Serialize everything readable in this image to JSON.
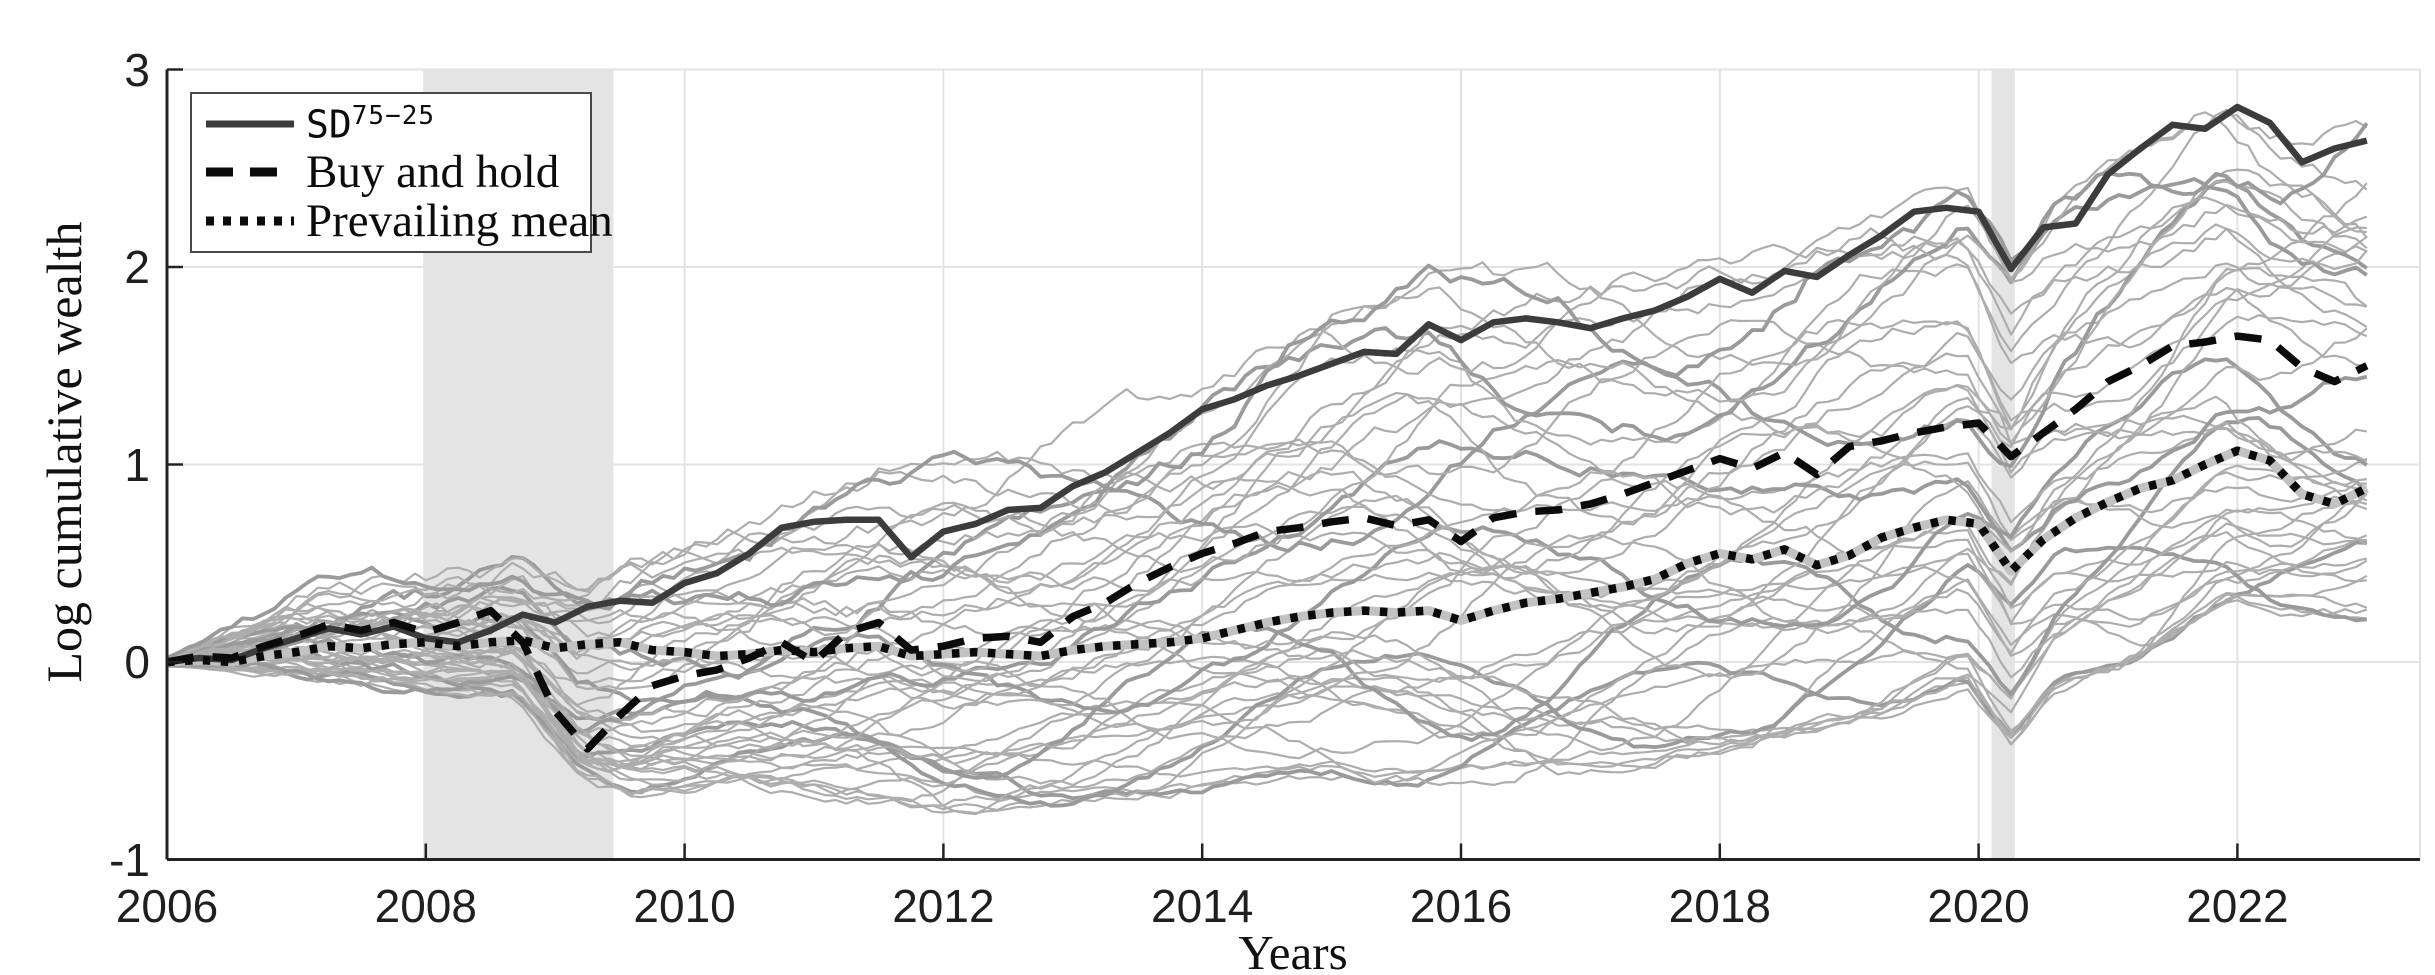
{
  "figure": {
    "background": "#ffffff"
  },
  "legend": {
    "items": [
      {
        "label_base": "SD",
        "label_superscript": "75−25",
        "style": "solid"
      },
      {
        "label": "Buy and hold",
        "style": "dashed"
      },
      {
        "label": "Prevailing mean",
        "style": "dotted"
      }
    ]
  },
  "chart_data": {
    "type": "line",
    "title": "",
    "xlabel": "Years",
    "ylabel": "Log cumulative wealth",
    "xlim": [
      2006,
      2023.4
    ],
    "ylim": [
      -1,
      3
    ],
    "grid": true,
    "legend_position": "top-left",
    "xticks": [
      2006,
      2008,
      2010,
      2012,
      2014,
      2016,
      2018,
      2020,
      2022
    ],
    "xtick_labels": [
      "2006",
      "2008",
      "2010",
      "2012",
      "2014",
      "2016",
      "2018",
      "2020",
      "2022"
    ],
    "yticks": [
      -1,
      0,
      1,
      2,
      3
    ],
    "ytick_labels": [
      "-1",
      "0",
      "1",
      "2",
      "3"
    ],
    "recession_bands": [
      {
        "start": 2007.98,
        "end": 2009.45
      },
      {
        "start": 2020.1,
        "end": 2020.28
      }
    ],
    "colors": {
      "band": "#e4e4e4",
      "grid": "#e3e3e3",
      "axis": "#222222",
      "halo": "#c2c2c2"
    },
    "x_start": 2006,
    "x_step": 0.25,
    "series": [
      {
        "name": "SD75-25",
        "style": "solid",
        "color": "#3c3c3c",
        "width": 6.5,
        "values": [
          0,
          0.02,
          0.01,
          0.07,
          0.12,
          0.17,
          0.14,
          0.18,
          0.12,
          0.1,
          0.16,
          0.24,
          0.2,
          0.28,
          0.31,
          0.3,
          0.4,
          0.45,
          0.55,
          0.68,
          0.71,
          0.72,
          0.72,
          0.53,
          0.66,
          0.7,
          0.77,
          0.78,
          0.89,
          0.96,
          1.06,
          1.16,
          1.28,
          1.33,
          1.4,
          1.45,
          1.51,
          1.57,
          1.56,
          1.71,
          1.63,
          1.72,
          1.74,
          1.72,
          1.69,
          1.74,
          1.78,
          1.85,
          1.94,
          1.87,
          1.98,
          1.95,
          2.06,
          2.16,
          2.28,
          2.3,
          2.28,
          1.99,
          2.2,
          2.22,
          2.47,
          2.6,
          2.72,
          2.7,
          2.81,
          2.73,
          2.53,
          2.6,
          2.64
        ]
      },
      {
        "name": "Buy and hold",
        "style": "dashed",
        "color": "#0b0b0b",
        "width": 7.5,
        "dash": "27 19",
        "values": [
          0,
          0.03,
          0.02,
          0.08,
          0.13,
          0.19,
          0.16,
          0.2,
          0.15,
          0.2,
          0.26,
          0.1,
          -0.25,
          -0.44,
          -0.27,
          -0.12,
          -0.07,
          -0.04,
          0.02,
          0.1,
          0.0,
          0.15,
          0.2,
          0.06,
          0.08,
          0.12,
          0.13,
          0.1,
          0.23,
          0.3,
          0.4,
          0.48,
          0.55,
          0.6,
          0.66,
          0.68,
          0.71,
          0.73,
          0.69,
          0.72,
          0.61,
          0.73,
          0.76,
          0.77,
          0.8,
          0.85,
          0.91,
          0.97,
          1.03,
          0.98,
          1.06,
          0.95,
          1.09,
          1.12,
          1.16,
          1.19,
          1.21,
          1.04,
          1.16,
          1.28,
          1.42,
          1.5,
          1.6,
          1.62,
          1.65,
          1.63,
          1.49,
          1.42,
          1.5
        ]
      },
      {
        "name": "Prevailing mean",
        "style": "dotted",
        "color": "#0b0b0b",
        "width": 8.5,
        "dash": "7.5 10.5",
        "halo": true,
        "values": [
          0,
          0.01,
          0.0,
          0.03,
          0.05,
          0.08,
          0.07,
          0.09,
          0.1,
          0.08,
          0.1,
          0.11,
          0.07,
          0.09,
          0.1,
          0.06,
          0.05,
          0.03,
          0.04,
          0.06,
          0.05,
          0.07,
          0.08,
          0.03,
          0.04,
          0.05,
          0.04,
          0.03,
          0.06,
          0.08,
          0.09,
          0.1,
          0.12,
          0.16,
          0.2,
          0.23,
          0.25,
          0.26,
          0.25,
          0.26,
          0.21,
          0.26,
          0.3,
          0.32,
          0.35,
          0.38,
          0.42,
          0.5,
          0.55,
          0.52,
          0.57,
          0.49,
          0.54,
          0.63,
          0.68,
          0.72,
          0.7,
          0.46,
          0.62,
          0.73,
          0.81,
          0.88,
          0.92,
          1.0,
          1.07,
          1.02,
          0.85,
          0.8,
          0.88
        ]
      }
    ],
    "background_ensemble": {
      "description": "individual simulated wealth paths",
      "count": 46,
      "color": "#adadad",
      "thick_color": "#9a9a9a",
      "seed": 7,
      "anchor_years": [
        2006,
        2007,
        2008,
        2008.7,
        2009.2,
        2009.6,
        2010.5,
        2011.5,
        2012,
        2013,
        2014,
        2015,
        2015.8,
        2016.5,
        2017.5,
        2018.5,
        2019.25,
        2019.9,
        2020.25,
        2020.6,
        2021.25,
        2021.9,
        2022.4,
        2023
      ],
      "envelope_max": [
        0.02,
        0.3,
        0.38,
        0.47,
        0.35,
        0.46,
        0.62,
        0.95,
        1.0,
        1.1,
        1.35,
        1.7,
        1.95,
        1.9,
        1.92,
        2.02,
        2.2,
        2.35,
        2.0,
        2.3,
        2.58,
        2.86,
        2.7,
        2.72
      ],
      "envelope_min": [
        -0.02,
        -0.06,
        -0.12,
        -0.18,
        -0.6,
        -0.68,
        -0.62,
        -0.68,
        -0.74,
        -0.7,
        -0.62,
        -0.57,
        -0.6,
        -0.55,
        -0.47,
        -0.36,
        -0.25,
        -0.08,
        -0.38,
        -0.1,
        0.05,
        0.32,
        0.28,
        0.25
      ]
    }
  }
}
